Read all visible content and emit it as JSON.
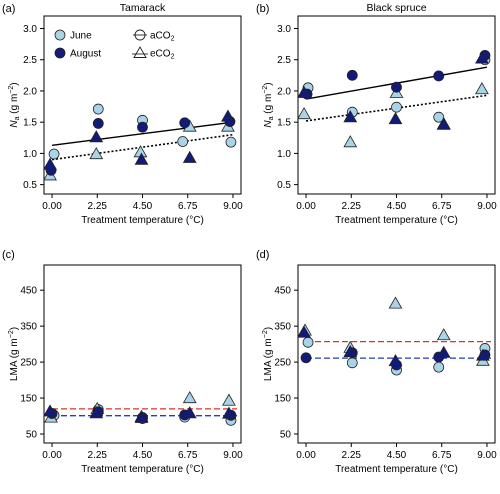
{
  "colors": {
    "june": "#a9d3e6",
    "august": "#121a7a",
    "fit_solid": "#000000",
    "fit_dotted": "#000000",
    "ref_red": "#e0302a",
    "ref_blue": "#1f3fbf"
  },
  "legend": {
    "june": "June",
    "august": "August",
    "aco2": "aCO",
    "eco2": "eCO",
    "co2_subscript": "2"
  },
  "chart_data": [
    {
      "id": "a",
      "type": "scatter",
      "panel_label": "(a)",
      "title": "Tamarack",
      "xlabel": "Treatment temperature (°C)",
      "ylabel_main": "N",
      "ylabel_sub": "a",
      "ylabel_unit": " (g m",
      "ylabel_exp": "−2",
      "ylabel_close": ")",
      "x_ticks": [
        "0.00",
        "2.25",
        "4.50",
        "6.75",
        "9.00"
      ],
      "y_ticks": [
        "0.5",
        "1.0",
        "1.5",
        "2.0",
        "2.5",
        "3.0"
      ],
      "xlim": [
        -0.4,
        9.4
      ],
      "ylim": [
        0.35,
        3.2
      ],
      "grid": false,
      "legend": "top-left",
      "points": [
        {
          "month": "june",
          "co2": "a",
          "x": 0.1,
          "y": 0.99
        },
        {
          "month": "june",
          "co2": "e",
          "x": -0.1,
          "y": 0.65
        },
        {
          "month": "june",
          "co2": "a",
          "x": 2.3,
          "y": 1.71
        },
        {
          "month": "june",
          "co2": "e",
          "x": 2.2,
          "y": 0.99
        },
        {
          "month": "june",
          "co2": "a",
          "x": 4.5,
          "y": 1.53
        },
        {
          "month": "june",
          "co2": "e",
          "x": 4.4,
          "y": 1.02
        },
        {
          "month": "june",
          "co2": "a",
          "x": 6.5,
          "y": 1.19
        },
        {
          "month": "june",
          "co2": "e",
          "x": 6.85,
          "y": 1.43
        },
        {
          "month": "june",
          "co2": "a",
          "x": 8.9,
          "y": 1.18
        },
        {
          "month": "june",
          "co2": "e",
          "x": 8.75,
          "y": 1.43
        },
        {
          "month": "august",
          "co2": "a",
          "x": -0.05,
          "y": 0.73
        },
        {
          "month": "august",
          "co2": "e",
          "x": -0.1,
          "y": 0.82
        },
        {
          "month": "august",
          "co2": "a",
          "x": 2.3,
          "y": 1.48
        },
        {
          "month": "august",
          "co2": "e",
          "x": 2.2,
          "y": 1.26
        },
        {
          "month": "august",
          "co2": "a",
          "x": 4.5,
          "y": 1.42
        },
        {
          "month": "august",
          "co2": "e",
          "x": 4.45,
          "y": 0.9
        },
        {
          "month": "august",
          "co2": "a",
          "x": 6.6,
          "y": 1.49
        },
        {
          "month": "august",
          "co2": "e",
          "x": 6.85,
          "y": 0.93
        },
        {
          "month": "august",
          "co2": "a",
          "x": 8.85,
          "y": 1.51
        },
        {
          "month": "august",
          "co2": "e",
          "x": 8.75,
          "y": 1.59
        }
      ],
      "fit_lines": [
        {
          "style": "solid",
          "x": [
            0.0,
            9.0
          ],
          "y": [
            1.13,
            1.5
          ]
        },
        {
          "style": "dotted",
          "x": [
            0.0,
            9.0
          ],
          "y": [
            0.9,
            1.3
          ]
        }
      ],
      "reference_lines": []
    },
    {
      "id": "b",
      "type": "scatter",
      "panel_label": "(b)",
      "title": "Black spruce",
      "xlabel": "Treatment temperature (°C)",
      "ylabel_main": "N",
      "ylabel_sub": "a",
      "ylabel_unit": " (g m",
      "ylabel_exp": "−2",
      "ylabel_close": ")",
      "x_ticks": [
        "0.00",
        "2.25",
        "4.50",
        "6.75",
        "9.00"
      ],
      "y_ticks": [
        "0.5",
        "1.0",
        "1.5",
        "2.0",
        "2.5",
        "3.0"
      ],
      "xlim": [
        -0.4,
        9.4
      ],
      "ylim": [
        0.35,
        3.2
      ],
      "grid": false,
      "legend": "none",
      "points": [
        {
          "month": "june",
          "co2": "a",
          "x": 0.1,
          "y": 2.05
        },
        {
          "month": "june",
          "co2": "e",
          "x": -0.1,
          "y": 1.63
        },
        {
          "month": "june",
          "co2": "a",
          "x": 2.3,
          "y": 1.66
        },
        {
          "month": "june",
          "co2": "e",
          "x": 2.2,
          "y": 1.18
        },
        {
          "month": "june",
          "co2": "a",
          "x": 4.5,
          "y": 1.74
        },
        {
          "month": "june",
          "co2": "e",
          "x": 4.5,
          "y": 1.97
        },
        {
          "month": "june",
          "co2": "a",
          "x": 6.6,
          "y": 1.58
        },
        {
          "month": "june",
          "co2": "e",
          "x": 6.85,
          "y": 1.47
        },
        {
          "month": "june",
          "co2": "a",
          "x": 8.9,
          "y": 2.5
        },
        {
          "month": "june",
          "co2": "e",
          "x": 8.75,
          "y": 2.03
        },
        {
          "month": "august",
          "co2": "a",
          "x": 0.05,
          "y": 1.95
        },
        {
          "month": "august",
          "co2": "e",
          "x": -0.1,
          "y": 1.97
        },
        {
          "month": "august",
          "co2": "a",
          "x": 2.3,
          "y": 2.25
        },
        {
          "month": "august",
          "co2": "e",
          "x": 2.2,
          "y": 1.58
        },
        {
          "month": "august",
          "co2": "a",
          "x": 4.5,
          "y": 2.06
        },
        {
          "month": "august",
          "co2": "e",
          "x": 4.45,
          "y": 1.55
        },
        {
          "month": "august",
          "co2": "a",
          "x": 6.6,
          "y": 2.24
        },
        {
          "month": "august",
          "co2": "e",
          "x": 6.85,
          "y": 1.46
        },
        {
          "month": "august",
          "co2": "a",
          "x": 8.9,
          "y": 2.57
        },
        {
          "month": "august",
          "co2": "e",
          "x": 8.75,
          "y": 2.52
        }
      ],
      "fit_lines": [
        {
          "style": "solid",
          "x": [
            0.0,
            9.0
          ],
          "y": [
            1.87,
            2.38
          ]
        },
        {
          "style": "dotted",
          "x": [
            0.0,
            9.0
          ],
          "y": [
            1.52,
            1.93
          ]
        }
      ],
      "reference_lines": []
    },
    {
      "id": "c",
      "type": "scatter",
      "panel_label": "(c)",
      "title": "",
      "xlabel": "Treatment temperature (°C)",
      "ylabel_main": "LMA",
      "ylabel_sub": "",
      "ylabel_unit": " (g m",
      "ylabel_exp": "−2",
      "ylabel_close": ")",
      "x_ticks": [
        "0.00",
        "2.25",
        "4.50",
        "6.75",
        "9.00"
      ],
      "y_ticks": [
        "50",
        "150",
        "250",
        "350",
        "450"
      ],
      "xlim": [
        -0.4,
        9.4
      ],
      "ylim": [
        25,
        520
      ],
      "grid": false,
      "legend": "none",
      "points": [
        {
          "month": "june",
          "co2": "a",
          "x": 0.1,
          "y": 102
        },
        {
          "month": "june",
          "co2": "e",
          "x": -0.05,
          "y": 96
        },
        {
          "month": "june",
          "co2": "a",
          "x": 2.3,
          "y": 118
        },
        {
          "month": "june",
          "co2": "e",
          "x": 2.25,
          "y": 120
        },
        {
          "month": "june",
          "co2": "a",
          "x": 4.5,
          "y": 93
        },
        {
          "month": "june",
          "co2": "e",
          "x": 4.45,
          "y": 98
        },
        {
          "month": "june",
          "co2": "a",
          "x": 6.6,
          "y": 97
        },
        {
          "month": "june",
          "co2": "e",
          "x": 6.85,
          "y": 150
        },
        {
          "month": "june",
          "co2": "a",
          "x": 8.9,
          "y": 88
        },
        {
          "month": "june",
          "co2": "e",
          "x": 8.8,
          "y": 143
        },
        {
          "month": "august",
          "co2": "a",
          "x": 0.0,
          "y": 107
        },
        {
          "month": "august",
          "co2": "e",
          "x": -0.1,
          "y": 113
        },
        {
          "month": "august",
          "co2": "a",
          "x": 2.3,
          "y": 112
        },
        {
          "month": "august",
          "co2": "e",
          "x": 2.2,
          "y": 108
        },
        {
          "month": "august",
          "co2": "a",
          "x": 4.5,
          "y": 96
        },
        {
          "month": "august",
          "co2": "e",
          "x": 4.45,
          "y": 95
        },
        {
          "month": "august",
          "co2": "a",
          "x": 6.6,
          "y": 103
        },
        {
          "month": "august",
          "co2": "e",
          "x": 6.85,
          "y": 108
        },
        {
          "month": "august",
          "co2": "a",
          "x": 8.9,
          "y": 102
        },
        {
          "month": "august",
          "co2": "e",
          "x": 8.8,
          "y": 107
        }
      ],
      "fit_lines": [],
      "reference_lines": [
        {
          "color": "red",
          "y": 120
        },
        {
          "color": "blue",
          "y": 101
        }
      ]
    },
    {
      "id": "d",
      "type": "scatter",
      "panel_label": "(d)",
      "title": "",
      "xlabel": "Treatment temperature (°C)",
      "ylabel_main": "LMA",
      "ylabel_sub": "",
      "ylabel_unit": " (g m",
      "ylabel_exp": "−2",
      "ylabel_close": ")",
      "x_ticks": [
        "0.00",
        "2.25",
        "4.50",
        "6.75",
        "9.00"
      ],
      "y_ticks": [
        "50",
        "150",
        "250",
        "350",
        "450"
      ],
      "xlim": [
        -0.4,
        9.4
      ],
      "ylim": [
        25,
        520
      ],
      "grid": false,
      "legend": "none",
      "points": [
        {
          "month": "june",
          "co2": "a",
          "x": 0.1,
          "y": 305
        },
        {
          "month": "june",
          "co2": "e",
          "x": -0.05,
          "y": 338
        },
        {
          "month": "june",
          "co2": "a",
          "x": 2.3,
          "y": 248
        },
        {
          "month": "june",
          "co2": "e",
          "x": 2.2,
          "y": 290
        },
        {
          "month": "june",
          "co2": "a",
          "x": 4.5,
          "y": 228
        },
        {
          "month": "june",
          "co2": "e",
          "x": 4.45,
          "y": 413
        },
        {
          "month": "june",
          "co2": "a",
          "x": 6.6,
          "y": 236
        },
        {
          "month": "june",
          "co2": "e",
          "x": 6.85,
          "y": 325
        },
        {
          "month": "june",
          "co2": "a",
          "x": 8.9,
          "y": 288
        },
        {
          "month": "june",
          "co2": "e",
          "x": 8.8,
          "y": 254
        },
        {
          "month": "august",
          "co2": "a",
          "x": 0.0,
          "y": 262
        },
        {
          "month": "august",
          "co2": "e",
          "x": -0.1,
          "y": 332
        },
        {
          "month": "august",
          "co2": "a",
          "x": 2.3,
          "y": 276
        },
        {
          "month": "august",
          "co2": "e",
          "x": 2.2,
          "y": 278
        },
        {
          "month": "august",
          "co2": "a",
          "x": 4.5,
          "y": 242
        },
        {
          "month": "august",
          "co2": "e",
          "x": 4.45,
          "y": 253
        },
        {
          "month": "august",
          "co2": "a",
          "x": 6.6,
          "y": 264
        },
        {
          "month": "august",
          "co2": "e",
          "x": 6.85,
          "y": 276
        },
        {
          "month": "august",
          "co2": "a",
          "x": 8.9,
          "y": 270
        },
        {
          "month": "august",
          "co2": "e",
          "x": 8.8,
          "y": 268
        }
      ],
      "fit_lines": [],
      "reference_lines": [
        {
          "color": "red",
          "y": 307
        },
        {
          "color": "blue",
          "y": 261
        }
      ]
    }
  ]
}
